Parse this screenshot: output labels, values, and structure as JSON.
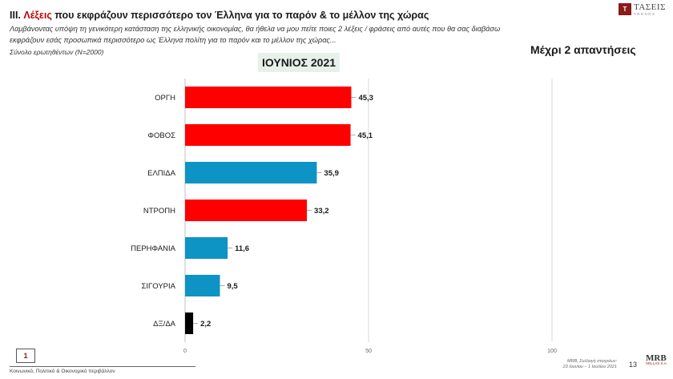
{
  "header": {
    "title_prefix": "III. ",
    "title_accent": "Λέξεις",
    "title_rest": " που εκφράζουν περισσότερο τον Έλληνα για το παρόν & το μέλλον της χώρας",
    "subtitle": "Λαμβάνοντας υπόψη τη γενικότερη κατάσταση της ελληνικής οικονομίας, θα ήθελα να μου πείτε ποιες 2 λέξεις / φράσεις από αυτές που θα σας διαβάσω εκφράζουν εσάς προσωπικά περισσότερο ως Έλληνα πολίτη για το παρόν και το μέλλον της χώρας...",
    "base": "Σύνολο ερωτηθέντων (Ν=2000)",
    "period": "ΙΟΥΝΙΟΣ 2021",
    "max_answers": "Μέχρι 2 απαντήσεις"
  },
  "logo_top": {
    "mark": "T",
    "name": "ΤΑΣΕΙΣ",
    "sub": "TRENDS"
  },
  "footer": {
    "page_box": "1",
    "section": "Κοινωνικό, Πολιτικό & Οικονομικό περιβάλλον",
    "source_line1": "MRB, Συλλογή στοιχείων:",
    "source_line2": "23 Ιουνίου – 1 Ιουλίου 2021",
    "page_number": "13",
    "logo_mrb": "MRB",
    "logo_mrb_sub": "HELLAS S.A."
  },
  "chart_data": {
    "type": "bar",
    "orientation": "horizontal",
    "title": "ΙΟΥΝΙΟΣ 2021",
    "categories": [
      "ΟΡΓΗ",
      "ΦΟΒΟΣ",
      "ΕΛΠΙΔΑ",
      "ΝΤΡΟΠΗ",
      "ΠΕΡΗΦΑΝΙΑ",
      "ΣΙΓΟΥΡΙΑ",
      "ΔΞ/ΔΑ"
    ],
    "values": [
      45.3,
      45.1,
      35.9,
      33.2,
      11.6,
      9.5,
      2.2
    ],
    "value_labels": [
      "45,3",
      "45,1",
      "35,9",
      "33,2",
      "11,6",
      "9,5",
      "2,2"
    ],
    "bar_colors": [
      "#ff0000",
      "#ff0000",
      "#0e93c5",
      "#ff0000",
      "#0e93c5",
      "#0e93c5",
      "#000000"
    ],
    "xlim": [
      0,
      100
    ],
    "x_ticks": [
      "0",
      "50",
      "100"
    ],
    "x_tick_values": [
      0,
      50,
      100
    ],
    "grid": "vertical lines at 50 and 100",
    "legend": "none"
  }
}
